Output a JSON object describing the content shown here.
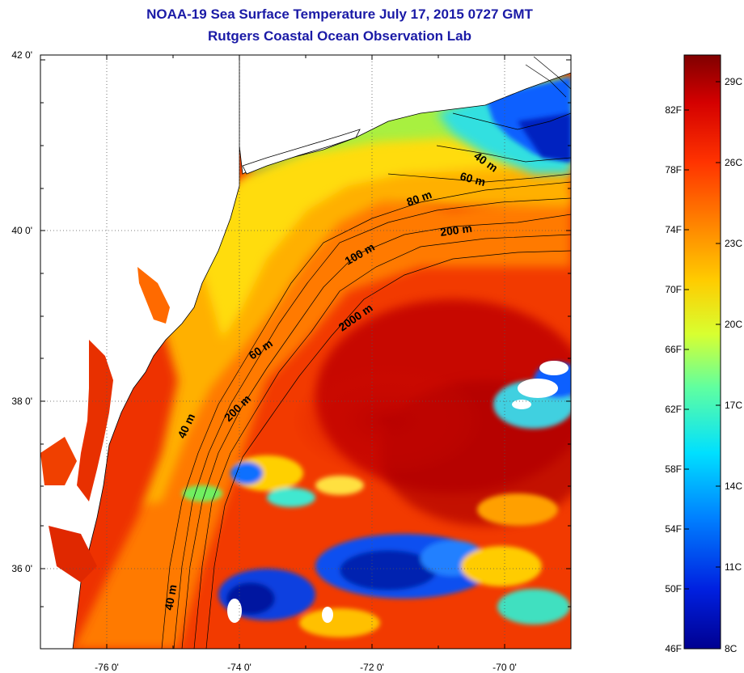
{
  "header": {
    "title": "NOAA-19 Sea Surface Temperature July 17, 2015 0727 GMT",
    "subtitle": "Rutgers Coastal Ocean Observation Lab"
  },
  "map": {
    "latitude_ticks": [
      "42 0'",
      "40 0'",
      "38 0'",
      "36 0'"
    ],
    "longitude_ticks": [
      "-76 0'",
      "-74 0'",
      "-72 0'",
      "-70 0'"
    ],
    "depth_contour_labels": [
      "40 m",
      "60 m",
      "80 m",
      "200 m",
      "100 m",
      "2000 m",
      "60 m",
      "200 m",
      "40 m",
      "40 m"
    ],
    "land_color": "#ffffff",
    "cloud_color": "#ffffff"
  },
  "colorbar": {
    "fahrenheit_labels": [
      "82F",
      "78F",
      "74F",
      "70F",
      "66F",
      "62F",
      "58F",
      "54F",
      "50F",
      "46F"
    ],
    "celsius_labels": [
      "29C",
      "26C",
      "23C",
      "20C",
      "17C",
      "14C",
      "11C",
      "8C"
    ],
    "colors": [
      "#800000",
      "#d40000",
      "#ff3300",
      "#ff8000",
      "#ffcc00",
      "#d8ff30",
      "#60ffa0",
      "#00e0ff",
      "#0080ff",
      "#0020e0",
      "#000090"
    ]
  }
}
